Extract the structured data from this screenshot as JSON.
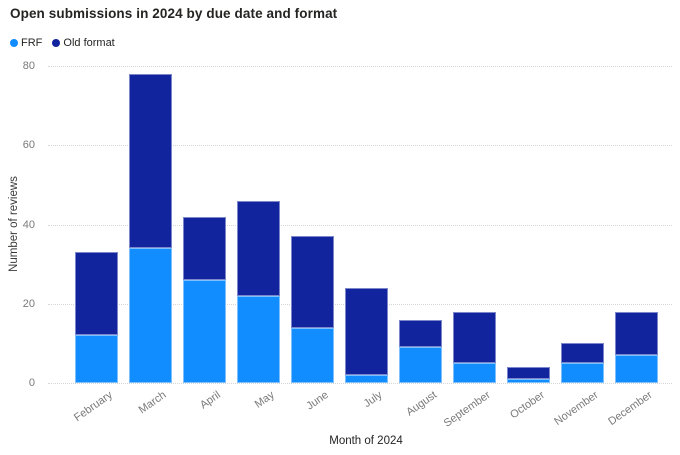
{
  "title": "Open submissions in 2024 by due date and format",
  "legend": {
    "items": [
      {
        "label": "FRF",
        "color": "#118DFF"
      },
      {
        "label": "Old format",
        "color": "#12239E"
      }
    ]
  },
  "chart_data": {
    "type": "bar",
    "stacked": true,
    "title": "Open submissions in 2024 by due date and format",
    "categories": [
      "February",
      "March",
      "April",
      "May",
      "June",
      "July",
      "August",
      "September",
      "October",
      "November",
      "December"
    ],
    "series": [
      {
        "name": "FRF",
        "color": "#118DFF",
        "values": [
          12,
          34,
          26,
          22,
          14,
          2,
          9,
          5,
          1,
          5,
          7
        ]
      },
      {
        "name": "Old format",
        "color": "#12239E",
        "values": [
          21,
          44,
          16,
          24,
          23,
          22,
          7,
          13,
          3,
          5,
          11
        ]
      }
    ],
    "stack_totals": [
      33,
      78,
      42,
      46,
      37,
      24,
      16,
      18,
      4,
      10,
      18
    ],
    "xlabel": "Month of 2024",
    "ylabel": "Number of reviews",
    "ylim": [
      0,
      80
    ],
    "yticks": [
      0,
      20,
      40,
      60,
      80
    ],
    "grid": "horizontal-dotted",
    "legend_position": "top-left"
  },
  "colors": {
    "background": "#FFFFFF",
    "title_text": "#252423",
    "axis_title_text": "#3B3A39",
    "tick_text": "#7A7A7A",
    "gridline": "#D6D6D6",
    "series_frf": "#118DFF",
    "series_old_format": "#12239E"
  }
}
